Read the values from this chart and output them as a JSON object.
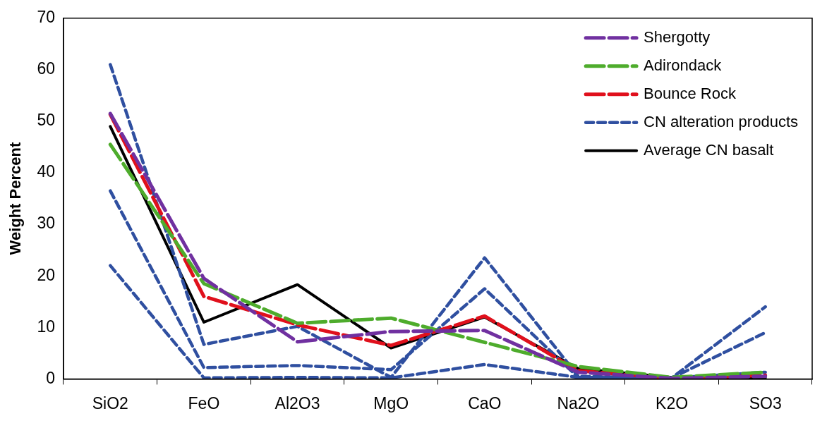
{
  "chart_data": {
    "type": "line",
    "ylabel": "Weight Percent",
    "categories": [
      "SiO2",
      "FeO",
      "Al2O3",
      "MgO",
      "CaO",
      "Na2O",
      "K2O",
      "SO3"
    ],
    "ylim": [
      0,
      70
    ],
    "yticks": [
      0,
      10,
      20,
      30,
      40,
      50,
      60,
      70
    ],
    "grid": false,
    "legend": "top right",
    "marker": "none",
    "series": [
      {
        "name": "Shergotty",
        "color": "#7030a0",
        "line_style": "dashed",
        "values": [
          51.5,
          19.5,
          7.2,
          9.2,
          9.4,
          1.3,
          0.1,
          0.5
        ]
      },
      {
        "name": "Adirondack",
        "color": "#4eac2c",
        "line_style": "dashed",
        "values": [
          45.5,
          18.5,
          10.8,
          11.8,
          7.1,
          2.4,
          0.3,
          1.3
        ]
      },
      {
        "name": "Bounce Rock",
        "color": "#e0101c",
        "line_style": "dashed",
        "values": [
          51.3,
          16,
          10.5,
          6.5,
          12.2,
          1.6,
          0.1,
          0.7
        ]
      },
      {
        "name": "CN alteration products",
        "color": "#2f4fa0",
        "line_style": "dotted",
        "values": [
          61,
          6.7,
          10.2,
          0.3,
          23.5,
          0.5,
          0.2,
          14
        ]
      },
      {
        "color": "#2f4fa0",
        "line_style": "dotted",
        "values": [
          36.5,
          2.2,
          2.6,
          1.8,
          17.5,
          0.3,
          0.2,
          9
        ]
      },
      {
        "color": "#2f4fa0",
        "line_style": "dotted",
        "values": [
          22,
          0.2,
          0.3,
          0.2,
          2.8,
          0.3,
          0.2,
          1.3
        ]
      },
      {
        "name": "Average CN basalt",
        "color": "#000000",
        "line_style": "solid",
        "values": [
          49,
          11,
          18.3,
          6,
          12,
          2,
          0.3,
          0.2
        ]
      }
    ]
  }
}
